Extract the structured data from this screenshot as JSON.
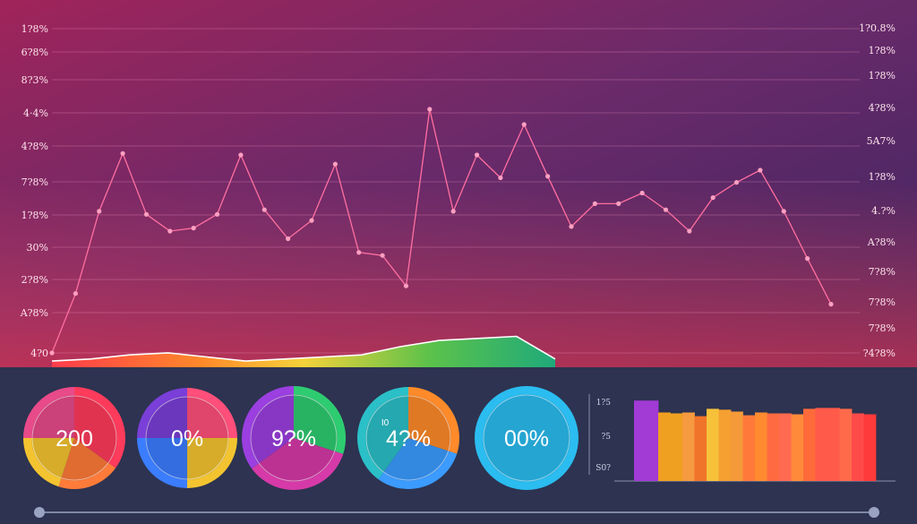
{
  "colors": {
    "top_background": "#3c2560",
    "bottom_panel": "#2d3350",
    "line": "#ff6fa0",
    "gridline": "#ff9fc8",
    "slider": "#9aa3c2"
  },
  "chart_data": [
    {
      "type": "line",
      "title": "",
      "y_left_ticks": [
        "1?8%",
        "6?8%",
        "8?3%",
        "4·4%",
        "4?8%",
        "7?8%",
        "1?8%",
        "30%",
        "2?8%",
        "A?8%",
        "4?0"
      ],
      "y_right_ticks": [
        "1?0.8%",
        "1?8%",
        "1?8%",
        "4?8%",
        "5A7%",
        "1?8%",
        "4.?%",
        "A?8%",
        "7?8%",
        "7?8%",
        "7?8%",
        "?4?8%"
      ],
      "series": [
        {
          "points": [
            [
              1,
              0.0
            ],
            [
              2,
              19.5
            ],
            [
              3,
              46.5
            ],
            [
              4,
              65.5
            ],
            [
              5,
              45.5
            ],
            [
              6,
              40.0
            ],
            [
              7,
              41.0
            ],
            [
              8,
              45.5
            ],
            [
              9,
              65.0
            ],
            [
              10,
              47.0
            ],
            [
              11,
              37.5
            ],
            [
              12,
              43.5
            ],
            [
              13,
              62.0
            ],
            [
              14,
              33.0
            ],
            [
              15,
              32.0
            ],
            [
              16,
              22.0
            ],
            [
              17,
              80.0
            ],
            [
              18,
              46.5
            ],
            [
              19,
              65.0
            ],
            [
              20,
              57.5
            ],
            [
              21,
              75.0
            ],
            [
              22,
              58.0
            ],
            [
              23,
              41.5
            ],
            [
              24,
              49.0
            ],
            [
              25,
              49.0
            ],
            [
              26,
              52.5
            ],
            [
              27,
              47.0
            ],
            [
              28,
              40.0
            ],
            [
              29,
              51.0
            ],
            [
              30,
              56.0
            ],
            [
              31,
              60.0
            ],
            [
              32,
              46.5
            ],
            [
              33,
              31.0
            ],
            [
              34,
              16.0
            ]
          ]
        }
      ]
    },
    {
      "type": "area",
      "values": [
        3,
        4,
        6,
        7,
        5,
        3,
        4,
        5,
        6,
        10,
        13,
        14,
        15,
        4
      ]
    },
    {
      "type": "pie",
      "gauges": [
        {
          "label": "200",
          "segments": [
            0.35,
            0.2,
            0.2,
            0.25
          ],
          "colors": [
            "#ff3b5c",
            "#ff7b3a",
            "#f4c430",
            "#e84a8a"
          ]
        },
        {
          "label": "0%",
          "segments": [
            0.25,
            0.25,
            0.25,
            0.25
          ],
          "colors": [
            "#ff4f7a",
            "#f4c430",
            "#3b7dff",
            "#7a3fd8"
          ]
        },
        {
          "label": "9?%",
          "segments": [
            0.3,
            0.35,
            0.35
          ],
          "colors": [
            "#2ecc71",
            "#d63aa8",
            "#9b3fe0"
          ]
        },
        {
          "label": "4?%",
          "sub": "I0",
          "segments": [
            0.3,
            0.3,
            0.4
          ],
          "colors": [
            "#ff8a2a",
            "#3b9bff",
            "#2bc0c8"
          ]
        },
        {
          "label": "00%",
          "segments": [
            1.0
          ],
          "colors": [
            "#2bbcf0"
          ]
        }
      ]
    },
    {
      "type": "bar",
      "y_ticks": [
        "1?5",
        "?5",
        "S0?"
      ],
      "values": [
        88,
        88,
        75,
        74,
        75,
        71,
        79,
        78,
        76,
        72,
        75,
        74,
        74,
        73,
        79,
        80,
        80,
        79,
        74,
        73
      ],
      "ylim": [
        0,
        100
      ]
    }
  ]
}
